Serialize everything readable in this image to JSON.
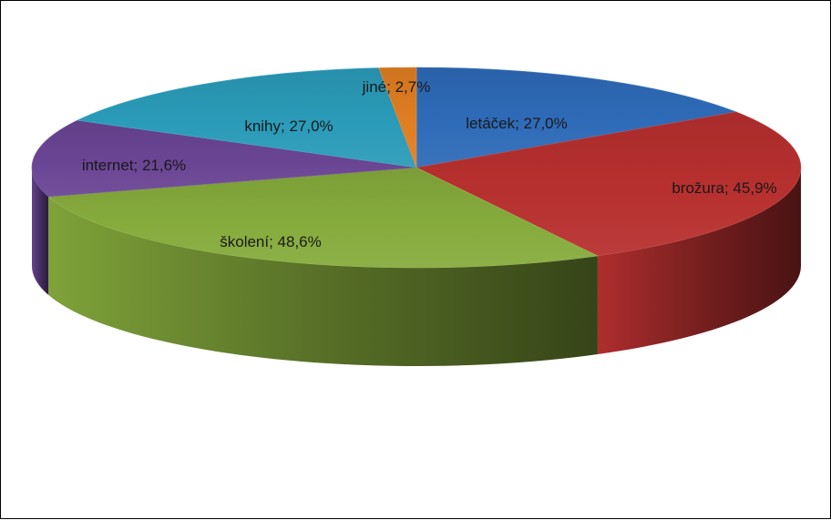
{
  "chart_data": {
    "type": "pie",
    "title": "",
    "three_d": true,
    "legend": "none",
    "unit": "%",
    "categories": [
      "letáček",
      "brožura",
      "školení",
      "internet",
      "knihy",
      "jiné"
    ],
    "values": [
      27.0,
      45.9,
      48.6,
      21.6,
      27.0,
      2.7
    ],
    "slices": [
      {
        "name": "letáček",
        "value": 27.0,
        "label": "letáček; 27,0%",
        "color": "#2e6bb8"
      },
      {
        "name": "brožura",
        "value": 45.9,
        "label": "brožura; 45,9%",
        "color": "#b7302f"
      },
      {
        "name": "školení",
        "value": 48.6,
        "label": "školení; 48,6%",
        "color": "#86ab3c"
      },
      {
        "name": "internet",
        "value": 21.6,
        "label": "internet; 21,6%",
        "color": "#6a4594"
      },
      {
        "name": "knihy",
        "value": 27.0,
        "label": "knihy; 27,0%",
        "color": "#2a9bb9"
      },
      {
        "name": "jiné",
        "value": 2.7,
        "label": "jiné; 2,7%",
        "color": "#e07e22"
      }
    ]
  }
}
